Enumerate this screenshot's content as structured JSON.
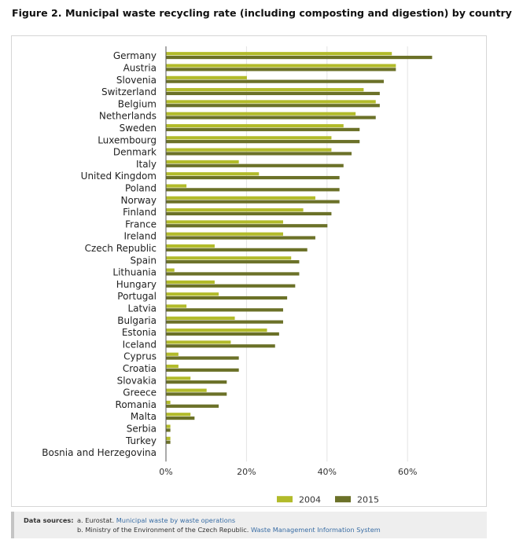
{
  "figure_title": "Figure 2. Municipal waste recycling rate (including composting and digestion) by country",
  "chart_data": {
    "type": "bar",
    "orientation": "horizontal",
    "title": "Figure 2. Municipal waste recycling rate (including composting and digestion) by country",
    "categories": [
      "Germany",
      "Austria",
      "Slovenia",
      "Switzerland",
      "Belgium",
      "Netherlands",
      "Sweden",
      "Luxembourg",
      "Denmark",
      "Italy",
      "United Kingdom",
      "Poland",
      "Norway",
      "Finland",
      "France",
      "Ireland",
      "Czech Republic",
      "Spain",
      "Lithuania",
      "Hungary",
      "Portugal",
      "Latvia",
      "Bulgaria",
      "Estonia",
      "Iceland",
      "Cyprus",
      "Croatia",
      "Slovakia",
      "Greece",
      "Romania",
      "Malta",
      "Serbia",
      "Turkey",
      "Bosnia and Herzegovina"
    ],
    "series": [
      {
        "name": "2004",
        "color": "#b2bb2a",
        "values": [
          56,
          57,
          20,
          49,
          52,
          47,
          44,
          41,
          41,
          18,
          23,
          5,
          37,
          34,
          29,
          29,
          12,
          31,
          2,
          12,
          13,
          5,
          17,
          25,
          16,
          3,
          3,
          6,
          10,
          1,
          6,
          1,
          1,
          0
        ]
      },
      {
        "name": "2015",
        "color": "#6b7128",
        "values": [
          66,
          57,
          54,
          53,
          53,
          52,
          48,
          48,
          46,
          44,
          43,
          43,
          43,
          41,
          40,
          37,
          35,
          33,
          33,
          32,
          30,
          29,
          29,
          28,
          27,
          18,
          18,
          15,
          15,
          13,
          7,
          1,
          1,
          0
        ]
      }
    ],
    "x_ticks": [
      "0%",
      "20%",
      "40%",
      "60%"
    ],
    "x_tick_values": [
      0,
      20,
      40,
      60
    ],
    "xlim": [
      0,
      75
    ],
    "grid": "vertical",
    "legend_position": "bottom"
  },
  "sources": {
    "heading": "Data sources:",
    "line1_prefix": "a. Eurostat.",
    "line1_link": "Municipal waste by waste operations",
    "line2_prefix": "b. Ministry of the Environment of the Czech Republic.",
    "line2_link": "Waste Management Information System"
  }
}
